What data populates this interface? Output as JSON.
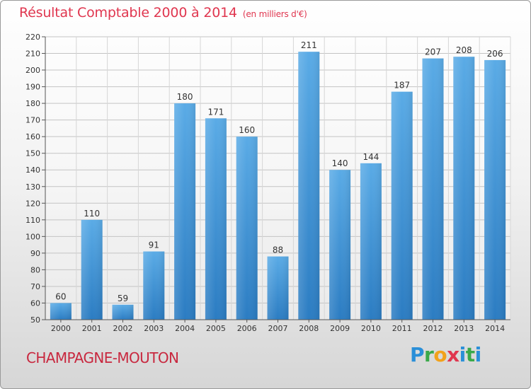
{
  "chart_data": {
    "type": "bar",
    "title": "Résultat Comptable 2000 à 2014",
    "subtitle": "(en milliers d'€)",
    "categories": [
      "2000",
      "2001",
      "2002",
      "2003",
      "2004",
      "2005",
      "2006",
      "2007",
      "2008",
      "2009",
      "2010",
      "2011",
      "2012",
      "2013",
      "2014"
    ],
    "values": [
      60,
      110,
      59,
      91,
      180,
      171,
      160,
      88,
      211,
      140,
      144,
      187,
      207,
      208,
      206
    ],
    "ylim": [
      50,
      220
    ],
    "yticks": [
      50,
      60,
      70,
      80,
      90,
      100,
      110,
      120,
      130,
      140,
      150,
      160,
      170,
      180,
      190,
      200,
      210,
      220
    ],
    "grid": true,
    "xlabel": "",
    "ylabel": ""
  },
  "footer": {
    "city": "CHAMPAGNE-MOUTON",
    "logo": {
      "p": "P",
      "r": "r",
      "o": "o",
      "x": "x",
      "i": "i",
      "t": "t",
      "i2": "i"
    }
  },
  "colors": {
    "bar_light": "#5aabe6",
    "bar_dark": "#2b7cc2",
    "title": "#e0364f"
  }
}
